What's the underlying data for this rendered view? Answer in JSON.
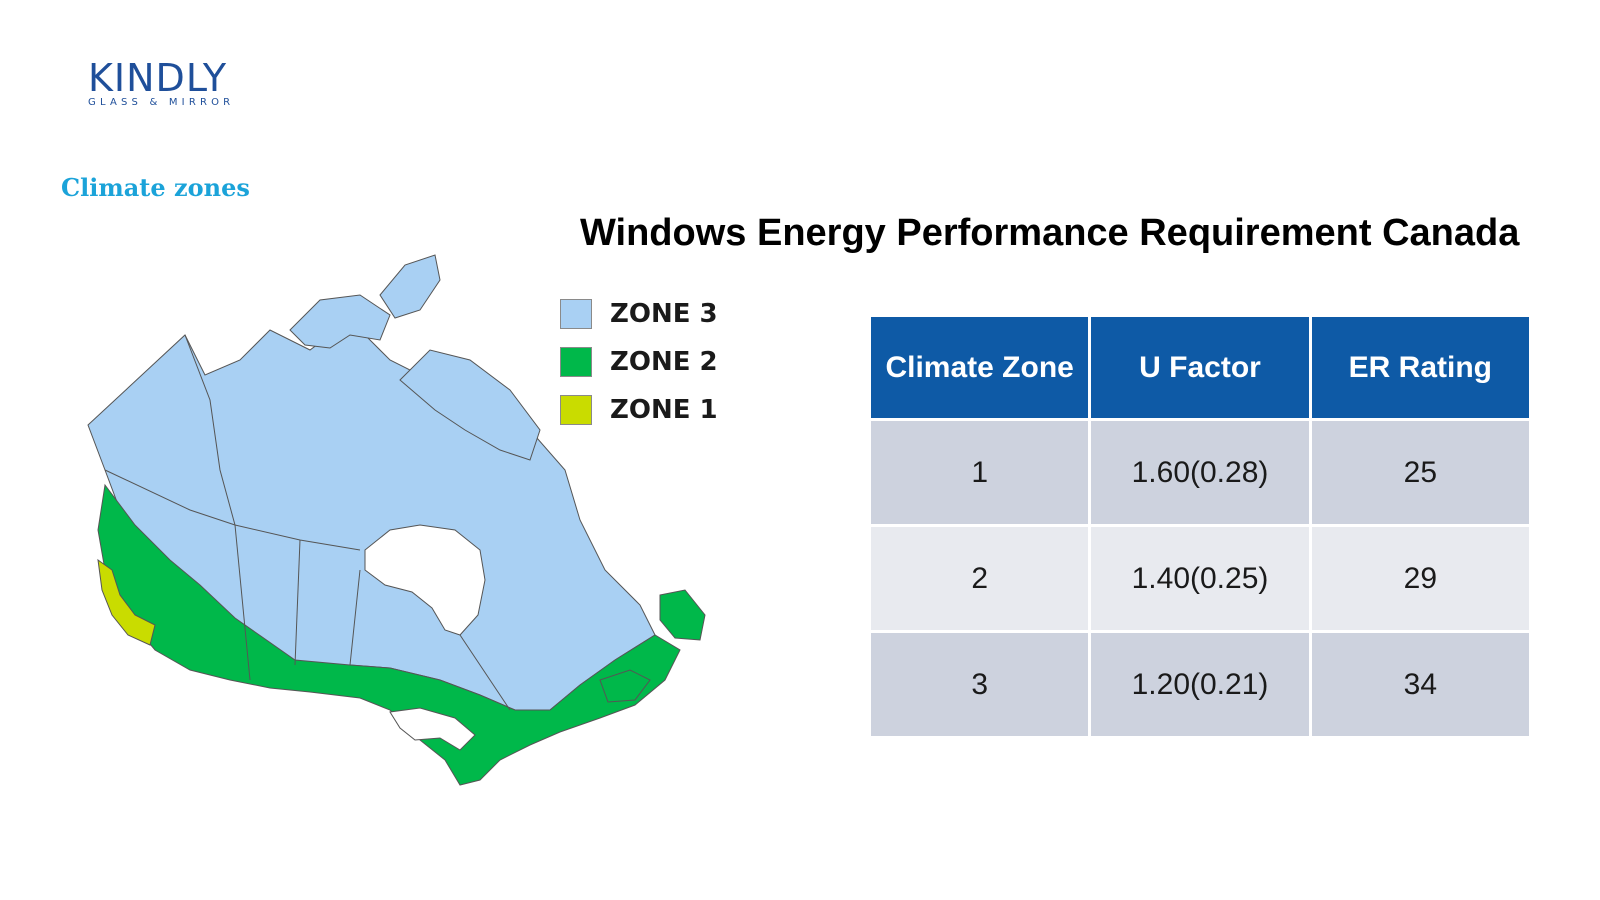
{
  "logo": {
    "word": "KINDLY",
    "subtitle": "GLASS & MIRROR"
  },
  "map_heading": "Climate zones",
  "title": "Windows Energy Performance Requirement Canada",
  "colors": {
    "zone3": "#a9d0f3",
    "zone2": "#00b84a",
    "zone1": "#c9dc00",
    "header_bg": "#0e5aa6",
    "logo": "#1f4f9a",
    "heading_cyan": "#1ba3d9"
  },
  "legend": [
    {
      "label": "ZONE 3",
      "color": "#a9d0f3"
    },
    {
      "label": "ZONE 2",
      "color": "#00b84a"
    },
    {
      "label": "ZONE 1",
      "color": "#c9dc00"
    }
  ],
  "table": {
    "headers": [
      "Climate Zone",
      "U Factor",
      "ER Rating"
    ],
    "rows": [
      [
        "1",
        "1.60(0.28)",
        "25"
      ],
      [
        "2",
        "1.40(0.25)",
        "29"
      ],
      [
        "3",
        "1.20(0.21)",
        "34"
      ]
    ]
  }
}
